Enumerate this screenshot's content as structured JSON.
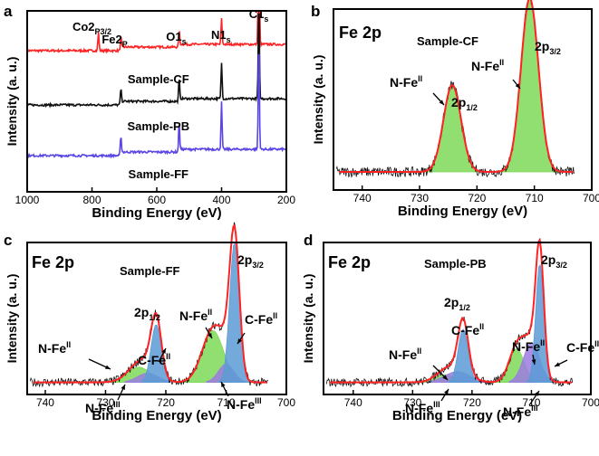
{
  "figure": {
    "panels": [
      {
        "letter": "a",
        "title": "",
        "subtitle": ""
      },
      {
        "letter": "b",
        "title": "Fe 2p",
        "subtitle": "Sample-CF"
      },
      {
        "letter": "c",
        "title": "Fe 2p",
        "subtitle": "Sample-FF"
      },
      {
        "letter": "d",
        "title": "Fe 2p",
        "subtitle": "Sample-PB"
      }
    ]
  },
  "chart_data": [
    {
      "type": "line",
      "panel": "a",
      "xlabel": "Binding Energy (eV)",
      "ylabel": "Intensity (a. u.)",
      "xlim": [
        1000,
        200
      ],
      "xticks": [
        1000,
        800,
        600,
        400,
        200
      ],
      "series": [
        {
          "name": "Sample-CF",
          "color": "#ff2222",
          "offset": 0.78,
          "peaks": [
            [
              780,
              0.1
            ],
            [
              711,
              0.06
            ],
            [
              531,
              0.08
            ],
            [
              400,
              0.14
            ],
            [
              285,
              0.9
            ]
          ]
        },
        {
          "name": "Sample-PB",
          "color": "#111111",
          "offset": 0.48,
          "peaks": [
            [
              711,
              0.08
            ],
            [
              531,
              0.12
            ],
            [
              400,
              0.2
            ],
            [
              285,
              0.55
            ]
          ]
        },
        {
          "name": "Sample-FF",
          "color": "#5a45e6",
          "offset": 0.2,
          "peaks": [
            [
              711,
              0.1
            ],
            [
              531,
              0.16
            ],
            [
              400,
              0.26
            ],
            [
              285,
              0.62
            ]
          ]
        }
      ],
      "annotations": [
        {
          "main": "Co2",
          "sub": "P3/2",
          "x": 778
        },
        {
          "main": "Fe2",
          "sub": "P",
          "x": 711
        },
        {
          "main": "O1",
          "sub": "s",
          "x": 531
        },
        {
          "main": "N1",
          "sub": "s",
          "x": 400
        },
        {
          "main": "C1",
          "sub": "s",
          "x": 285
        }
      ],
      "series_labels": [
        "Sample-CF",
        "Sample-PB",
        "Sample-FF"
      ]
    },
    {
      "type": "line",
      "panel": "b",
      "xlabel": "Binding Energy (eV)",
      "ylabel": "Intensity (a. u.)",
      "xlim": [
        745,
        700
      ],
      "xticks": [
        740,
        730,
        720,
        710,
        700
      ],
      "baseline": 0.1,
      "fill_color": "#7ed957",
      "components": [
        {
          "name": "N-FeII 2p1/2",
          "center": 724.3,
          "height": 0.48,
          "fwhm": 3.6,
          "color": "#7ed957"
        },
        {
          "name": "N-FeII 2p3/2",
          "center": 710.8,
          "height": 0.96,
          "fwhm": 3.6,
          "color": "#7ed957"
        }
      ],
      "annotations": [
        {
          "main": "N-Fe",
          "sup": "II",
          "sub": ""
        },
        {
          "main": "2p",
          "sup": "",
          "sub": "1/2"
        },
        {
          "main": "N-Fe",
          "sup": "II",
          "sub": ""
        },
        {
          "main": "2p",
          "sup": "",
          "sub": "3/2"
        }
      ]
    },
    {
      "type": "line",
      "panel": "c",
      "xlabel": "Binding Energy (eV)",
      "ylabel": "Intensity (a. u.)",
      "xlim": [
        743,
        700
      ],
      "xticks": [
        740,
        730,
        720,
        710,
        700
      ],
      "baseline": 0.08,
      "components": [
        {
          "name": "N-FeII",
          "center": 724.5,
          "height": 0.1,
          "fwhm": 4.5,
          "color": "#7ed957"
        },
        {
          "name": "N-FeIII",
          "center": 723.0,
          "height": 0.06,
          "fwhm": 4.0,
          "color": "#9b7be0"
        },
        {
          "name": "C-FeII",
          "center": 721.6,
          "height": 0.38,
          "fwhm": 2.0,
          "color": "#5b9bd5"
        },
        {
          "name": "N-FeII",
          "center": 712.2,
          "height": 0.34,
          "fwhm": 4.2,
          "color": "#7ed957"
        },
        {
          "name": "N-FeIII",
          "center": 710.0,
          "height": 0.12,
          "fwhm": 3.0,
          "color": "#9b7be0"
        },
        {
          "name": "C-FeII",
          "center": 708.6,
          "height": 0.92,
          "fwhm": 1.9,
          "color": "#5b9bd5"
        }
      ],
      "annotations": [
        {
          "main": "2p",
          "sup": "",
          "sub": "3/2"
        },
        {
          "main": "2p",
          "sup": "",
          "sub": "1/2"
        },
        {
          "main": "N-Fe",
          "sup": "II",
          "sub": ""
        },
        {
          "main": "C-Fe",
          "sup": "II",
          "sub": ""
        },
        {
          "main": "N-Fe",
          "sup": "II",
          "sub": ""
        },
        {
          "main": "C-Fe",
          "sup": "II",
          "sub": ""
        },
        {
          "main": "N-Fe",
          "sup": "III",
          "sub": ""
        },
        {
          "main": "N-Fe",
          "sup": "III",
          "sub": ""
        }
      ]
    },
    {
      "type": "line",
      "panel": "d",
      "xlabel": "Binding Energy (eV)",
      "ylabel": "Intensity (a. u.)",
      "xlim": [
        745,
        700
      ],
      "xticks": [
        740,
        730,
        720,
        710,
        700
      ],
      "baseline": 0.08,
      "components": [
        {
          "name": "N-FeII",
          "center": 724.5,
          "height": 0.05,
          "fwhm": 4.0,
          "color": "#7ed957"
        },
        {
          "name": "N-FeIII",
          "center": 722.5,
          "height": 0.07,
          "fwhm": 5.0,
          "color": "#9b7be0"
        },
        {
          "name": "C-FeII",
          "center": 721.5,
          "height": 0.35,
          "fwhm": 2.0,
          "color": "#5b9bd5"
        },
        {
          "name": "N-FeII",
          "center": 712.5,
          "height": 0.22,
          "fwhm": 3.0,
          "color": "#7ed957"
        },
        {
          "name": "N-FeIII",
          "center": 710.0,
          "height": 0.26,
          "fwhm": 3.2,
          "color": "#9b7be0"
        },
        {
          "name": "C-FeII",
          "center": 708.6,
          "height": 0.78,
          "fwhm": 1.6,
          "color": "#5b9bd5"
        }
      ],
      "annotations": [
        {
          "main": "2p",
          "sup": "",
          "sub": "3/2"
        },
        {
          "main": "2p",
          "sup": "",
          "sub": "1/2"
        },
        {
          "main": "C-Fe",
          "sup": "II",
          "sub": ""
        },
        {
          "main": "N-Fe",
          "sup": "II",
          "sub": ""
        },
        {
          "main": "N-Fe",
          "sup": "II",
          "sub": ""
        },
        {
          "main": "C-Fe",
          "sup": "II",
          "sub": ""
        },
        {
          "main": "N-Fe",
          "sup": "III",
          "sub": ""
        },
        {
          "main": "N-Fe",
          "sup": "III",
          "sub": ""
        }
      ]
    }
  ]
}
